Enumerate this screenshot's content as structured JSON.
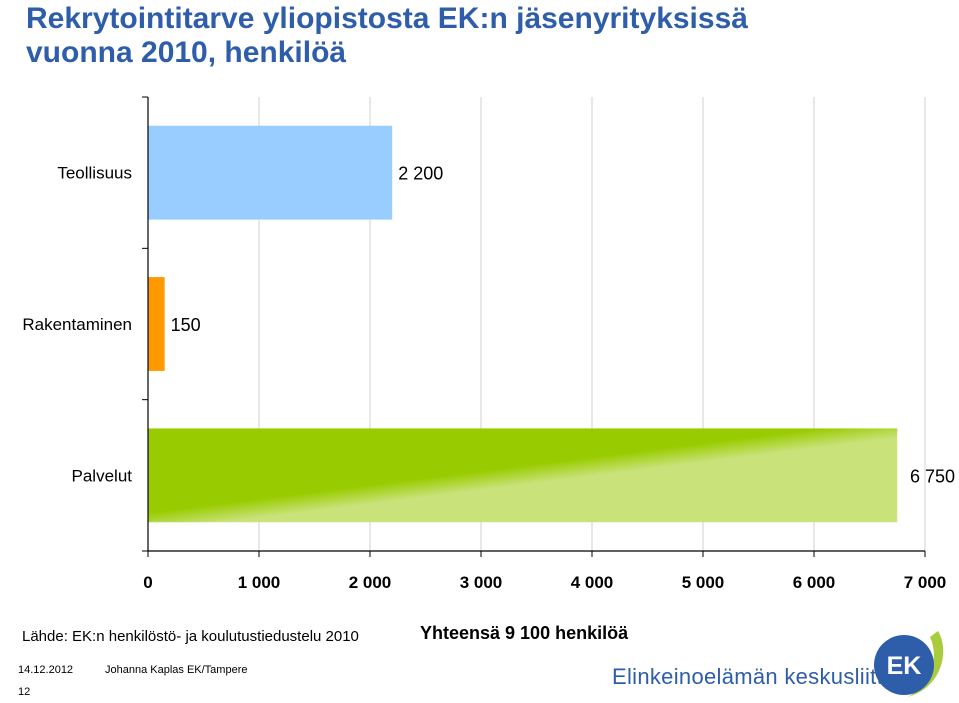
{
  "title_line1": "Rekrytointitarve yliopistosta EK:n jäsenyrityksissä",
  "title_line2": "vuonna 2010, henkilöä",
  "source": "Lähde: EK:n henkilöstö- ja koulutustiedustelu 2010",
  "total": "Yhteensä 9 100 henkilöä",
  "footer": {
    "date": "14.12.2012",
    "author": "Johanna Kaplas EK/Tampere",
    "page": "12"
  },
  "brand": {
    "name": "Elinkeinoelämän keskusliitto",
    "logo_text": "EK"
  },
  "colors": {
    "title": "#2e5daa",
    "teollisuus": "#99ccff",
    "rakentaminen": "#ff9900",
    "palvelut_dark": "#99cc00",
    "palvelut_light": "#c9e27a"
  },
  "chart_data": {
    "type": "bar",
    "orientation": "horizontal",
    "categories": [
      "Teollisuus",
      "Rakentaminen",
      "Palvelut"
    ],
    "values": [
      2200,
      150,
      6750
    ],
    "value_labels": [
      "2 200",
      "150",
      "6 750"
    ],
    "xlim": [
      0,
      7000
    ],
    "x_ticks": [
      0,
      1000,
      2000,
      3000,
      4000,
      5000,
      6000,
      7000
    ],
    "x_tick_labels": [
      "0",
      "1 000",
      "2 000",
      "3 000",
      "4 000",
      "5 000",
      "6 000",
      "7 000"
    ],
    "grid": "vertical",
    "colors": [
      "#99ccff",
      "#ff9900",
      "#99cc00"
    ]
  }
}
